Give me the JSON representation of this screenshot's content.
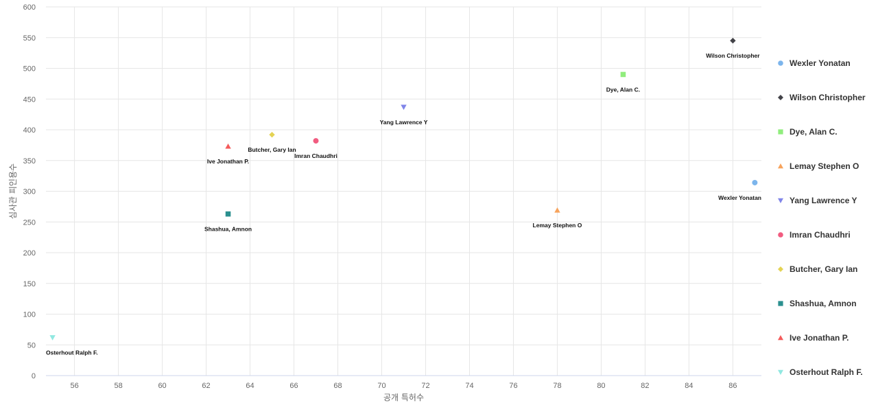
{
  "chart_data": {
    "type": "scatter",
    "title": "",
    "xlabel": "공개 특허수",
    "ylabel": "심사관 피인용수",
    "xlim": [
      54.7,
      87.3
    ],
    "ylim": [
      0,
      600
    ],
    "xticks": [
      56,
      58,
      60,
      62,
      64,
      66,
      68,
      70,
      72,
      74,
      76,
      78,
      80,
      82,
      84,
      86
    ],
    "yticks": [
      0,
      50,
      100,
      150,
      200,
      250,
      300,
      350,
      400,
      450,
      500,
      550,
      600
    ],
    "grid": true,
    "legend_position": "right",
    "series": [
      {
        "name": "Wexler Yonatan",
        "x": 87,
        "y": 314,
        "marker": "circle",
        "color": "#7cb5ec"
      },
      {
        "name": "Wilson Christopher",
        "x": 86,
        "y": 545,
        "marker": "diamond",
        "color": "#434348"
      },
      {
        "name": "Dye, Alan C.",
        "x": 81,
        "y": 490,
        "marker": "square",
        "color": "#90ed7d"
      },
      {
        "name": "Lemay Stephen O",
        "x": 78,
        "y": 269,
        "marker": "triangle",
        "color": "#f7a35c"
      },
      {
        "name": "Yang Lawrence Y",
        "x": 71,
        "y": 437,
        "marker": "triangle-down",
        "color": "#8085e9"
      },
      {
        "name": "Imran Chaudhri",
        "x": 67,
        "y": 382,
        "marker": "circle",
        "color": "#f15c80"
      },
      {
        "name": "Butcher, Gary Ian",
        "x": 65,
        "y": 392,
        "marker": "diamond",
        "color": "#e4d354"
      },
      {
        "name": "Shashua, Amnon",
        "x": 63,
        "y": 263,
        "marker": "square",
        "color": "#2b908f"
      },
      {
        "name": "Ive Jonathan P.",
        "x": 63,
        "y": 373,
        "marker": "triangle",
        "color": "#f45b5b"
      },
      {
        "name": "Osterhout Ralph F.",
        "x": 55,
        "y": 62,
        "marker": "triangle-down",
        "color": "#91e8e1"
      }
    ]
  }
}
